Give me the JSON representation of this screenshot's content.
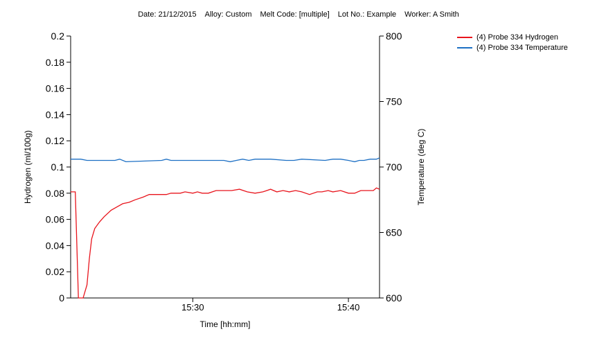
{
  "header": {
    "date": "Date: 21/12/2015",
    "alloy": "Alloy: Custom",
    "melt_code": "Melt Code: [multiple]",
    "lot_no": "Lot No.: Example",
    "worker": "Worker: A Smith"
  },
  "chart_data": {
    "type": "line",
    "xlabel": "Time [hh:mm]",
    "ylabel": "Hydrogen (ml/100g)",
    "y2label": "Temperature (deg C)",
    "x_unit": "minutes after 15:00",
    "xlim": [
      22.15,
      42.0
    ],
    "x_ticks": [
      {
        "value": 30,
        "label": "15:30"
      },
      {
        "value": 40,
        "label": "15:40"
      }
    ],
    "ylim": [
      0,
      0.2
    ],
    "y_ticks": [
      "0",
      "0.02",
      "0.04",
      "0.06",
      "0.08",
      "0.1",
      "0.12",
      "0.14",
      "0.16",
      "0.18",
      "0.2"
    ],
    "y2lim": [
      600,
      800
    ],
    "y2_ticks": [
      "600",
      "650",
      "700",
      "750",
      "800"
    ],
    "legend_position": "top-right",
    "series": [
      {
        "name": "(4) Probe 334 Hydrogen",
        "axis": "left",
        "color": "#e8141c",
        "x": [
          22.15,
          22.45,
          22.65,
          22.95,
          23.2,
          23.35,
          23.5,
          23.7,
          24.0,
          24.3,
          24.75,
          25.2,
          25.5,
          25.9,
          26.3,
          26.8,
          27.2,
          27.6,
          28.3,
          28.6,
          29.2,
          29.5,
          30.0,
          30.3,
          30.6,
          31.0,
          31.5,
          32.0,
          32.5,
          33.0,
          33.5,
          34.0,
          34.5,
          35.0,
          35.4,
          35.8,
          36.2,
          36.6,
          37.0,
          37.5,
          38.0,
          38.3,
          38.7,
          39.0,
          39.5,
          40.0,
          40.4,
          40.8,
          41.2,
          41.6,
          41.8,
          42.0
        ],
        "y": [
          0.081,
          0.081,
          0,
          0,
          0.01,
          0.03,
          0.045,
          0.053,
          0.058,
          0.062,
          0.067,
          0.07,
          0.072,
          0.073,
          0.075,
          0.077,
          0.079,
          0.079,
          0.079,
          0.08,
          0.08,
          0.081,
          0.08,
          0.081,
          0.08,
          0.08,
          0.082,
          0.082,
          0.082,
          0.083,
          0.081,
          0.08,
          0.081,
          0.083,
          0.081,
          0.082,
          0.081,
          0.082,
          0.081,
          0.079,
          0.081,
          0.081,
          0.082,
          0.081,
          0.082,
          0.08,
          0.08,
          0.082,
          0.082,
          0.082,
          0.084,
          0.083
        ]
      },
      {
        "name": "(4) Probe 334 Temperature",
        "axis": "right",
        "color": "#1c6fc4",
        "x": [
          22.15,
          22.8,
          23.2,
          25.0,
          25.3,
          25.7,
          28.0,
          28.3,
          28.6,
          32.0,
          32.4,
          32.8,
          33.2,
          33.6,
          34.0,
          35.0,
          36.0,
          36.5,
          37.0,
          38.5,
          39.0,
          39.5,
          40.0,
          40.4,
          40.7,
          41.0,
          41.4,
          41.8,
          42.0
        ],
        "y": [
          706,
          706,
          705,
          705,
          706,
          704,
          705,
          706,
          705,
          705,
          704,
          705,
          706,
          705,
          706,
          706,
          705,
          705,
          706,
          705,
          706,
          706,
          705,
          704,
          705,
          705,
          706,
          706,
          707
        ]
      }
    ]
  }
}
